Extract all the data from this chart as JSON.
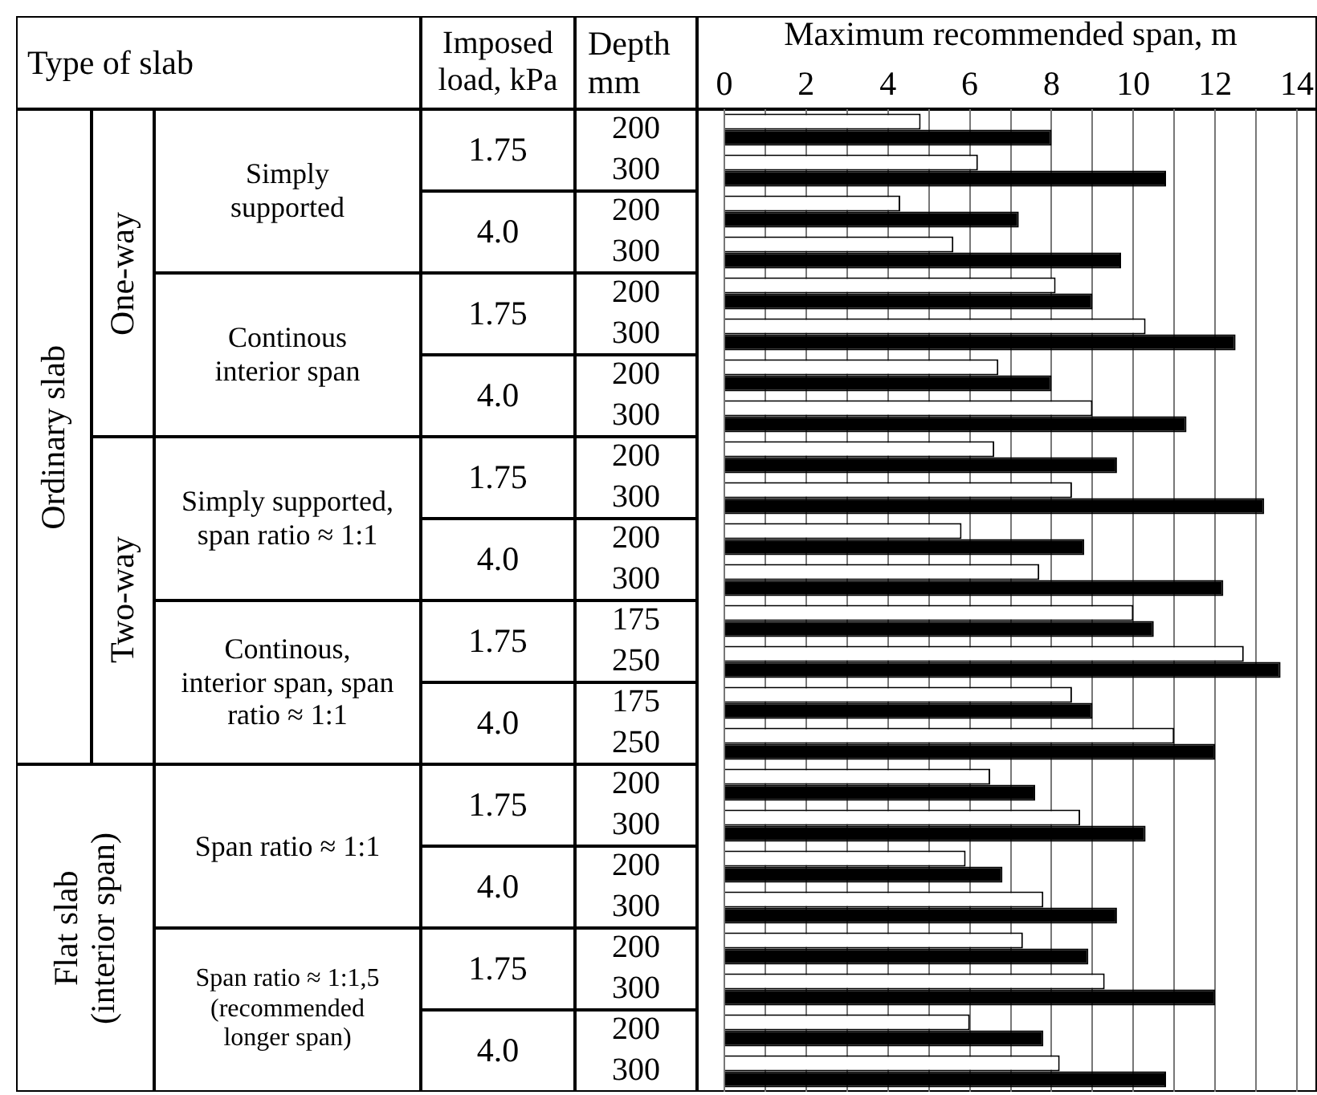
{
  "chart_data": {
    "type": "bar",
    "orientation": "horizontal",
    "xlabel": "Maximum recommended span, m",
    "ylabel": "Depth mm",
    "categories": [
      "200",
      "300",
      "200",
      "300",
      "200",
      "300",
      "200",
      "300",
      "200",
      "300",
      "200",
      "300",
      "175",
      "250",
      "175",
      "250",
      "200",
      "300",
      "200",
      "300",
      "200",
      "300",
      "200",
      "300"
    ],
    "series": [
      {
        "color": "#ffffff",
        "values": [
          4.8,
          6.2,
          4.3,
          5.6,
          8.1,
          10.3,
          6.7,
          9.0,
          6.6,
          8.5,
          5.8,
          7.7,
          10.0,
          12.7,
          8.5,
          11.0,
          6.5,
          8.7,
          5.9,
          7.8,
          7.3,
          9.3,
          6.0,
          8.2
        ]
      },
      {
        "color": "#000000",
        "values": [
          8.0,
          10.8,
          7.2,
          9.7,
          9.0,
          12.5,
          8.0,
          11.3,
          9.6,
          13.2,
          8.8,
          12.2,
          10.5,
          13.6,
          9.0,
          12.0,
          7.6,
          10.3,
          6.8,
          9.6,
          8.9,
          12.0,
          7.8,
          10.8
        ]
      }
    ],
    "xlim": [
      0,
      14
    ],
    "xticks": [
      0,
      {
        "value": 1,
        "label": null
      },
      2,
      {
        "value": 3,
        "label": null
      },
      4,
      {
        "value": 5,
        "label": null
      },
      6,
      {
        "value": 7,
        "label": null
      },
      8,
      {
        "value": 9,
        "label": null
      },
      10,
      {
        "value": 11,
        "label": null
      },
      12,
      {
        "value": 13,
        "label": null
      },
      14
    ],
    "grid": "x",
    "legend": false,
    "annotations": [
      "Type of slab",
      "Imposed load, kPa",
      "Ordinary slab",
      "One-way",
      "Simply supported",
      "Continous interior span",
      "Two-way",
      "Simply supported, span ratio ≈ 1:1",
      "Continous, interior span, span ratio ≈ 1:1",
      "Flat slab (interior span)",
      "Span ratio ≈ 1:1",
      "Span ratio ≈ 1:1,5 (recommended longer span)",
      "1.75",
      "4.0",
      "1.75",
      "4.0",
      "1.75",
      "4.0",
      "1.75",
      "4.0",
      "1.75",
      "4.0",
      "1.75",
      "4.0"
    ]
  }
}
